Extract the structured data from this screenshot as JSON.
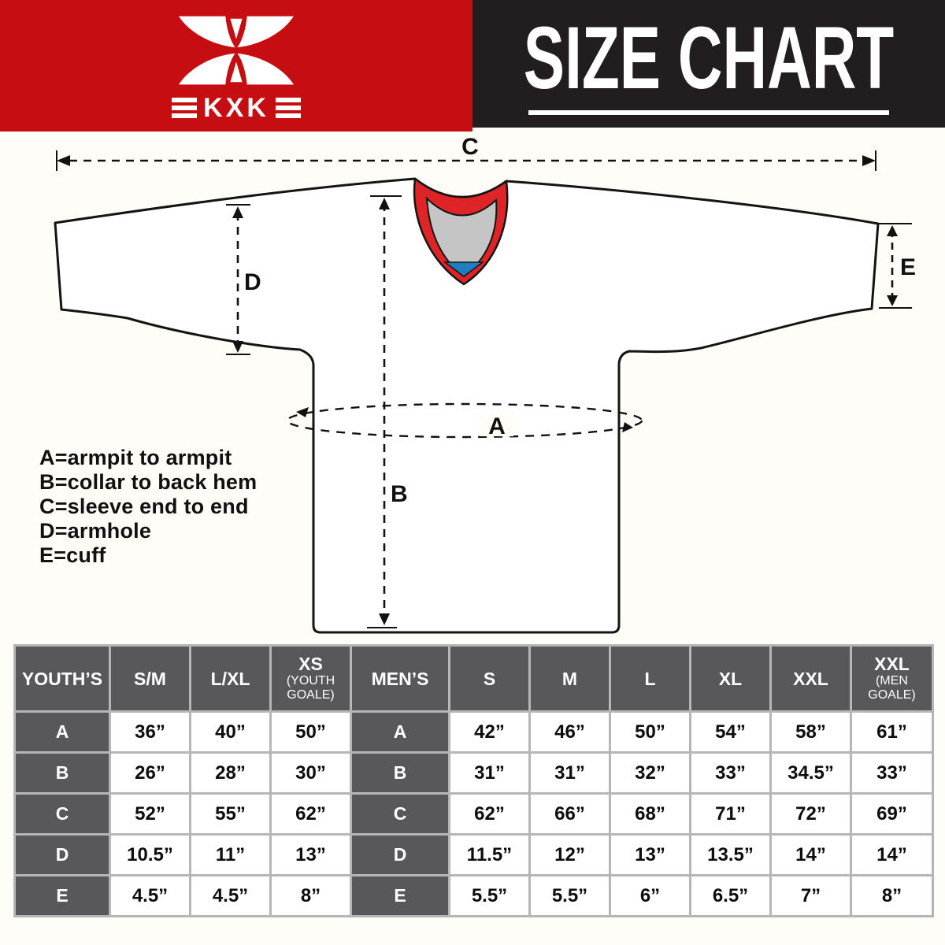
{
  "brand": {
    "name": "KXK",
    "logo_icon": "kxk-butterfly-x-logo",
    "wordmark": "KXK"
  },
  "header": {
    "title": "SIZE CHART"
  },
  "colors": {
    "brand_red": "#c60d12",
    "header_black": "#221e1f",
    "table_gray": "#58585a",
    "grid_line": "#b6b6b6",
    "collar_red": "#df2428",
    "collar_gray": "#c5c5c5",
    "collar_blue": "#1d7ec2",
    "background": "#fffdf7"
  },
  "diagram": {
    "dim_labels": {
      "A": "A",
      "B": "B",
      "C": "C",
      "D": "D",
      "E": "E"
    },
    "legend": [
      "A=armpit to armpit",
      "B=collar to back hem",
      "C=sleeve end to end",
      "D=armhole",
      "E=cuff"
    ]
  },
  "size_table": {
    "header": [
      {
        "label": "YOUTH’S"
      },
      {
        "label": "S/M"
      },
      {
        "label": "L/XL"
      },
      {
        "label": "XS",
        "sub": "(YOUTH GOALE)"
      },
      {
        "label": "MEN’S"
      },
      {
        "label": "S"
      },
      {
        "label": "M"
      },
      {
        "label": "L"
      },
      {
        "label": "XL"
      },
      {
        "label": "XXL"
      },
      {
        "label": "XXL",
        "sub": "(MEN GOALE)"
      }
    ],
    "rows": [
      {
        "label": "A",
        "youth": [
          "36”",
          "40”",
          "50”"
        ],
        "men": [
          "42”",
          "46”",
          "50”",
          "54”",
          "58”",
          "61”"
        ]
      },
      {
        "label": "B",
        "youth": [
          "26”",
          "28”",
          "30”"
        ],
        "men": [
          "31”",
          "31”",
          "32”",
          "33”",
          "34.5”",
          "33”"
        ]
      },
      {
        "label": "C",
        "youth": [
          "52”",
          "55”",
          "62”"
        ],
        "men": [
          "62”",
          "66”",
          "68”",
          "71”",
          "72”",
          "69”"
        ]
      },
      {
        "label": "D",
        "youth": [
          "10.5”",
          "11”",
          "13”"
        ],
        "men": [
          "11.5”",
          "12”",
          "13”",
          "13.5”",
          "14”",
          "14”"
        ]
      },
      {
        "label": "E",
        "youth": [
          "4.5”",
          "4.5”",
          "8”"
        ],
        "men": [
          "5.5”",
          "5.5”",
          "6”",
          "6.5”",
          "7”",
          "8”"
        ]
      }
    ]
  }
}
